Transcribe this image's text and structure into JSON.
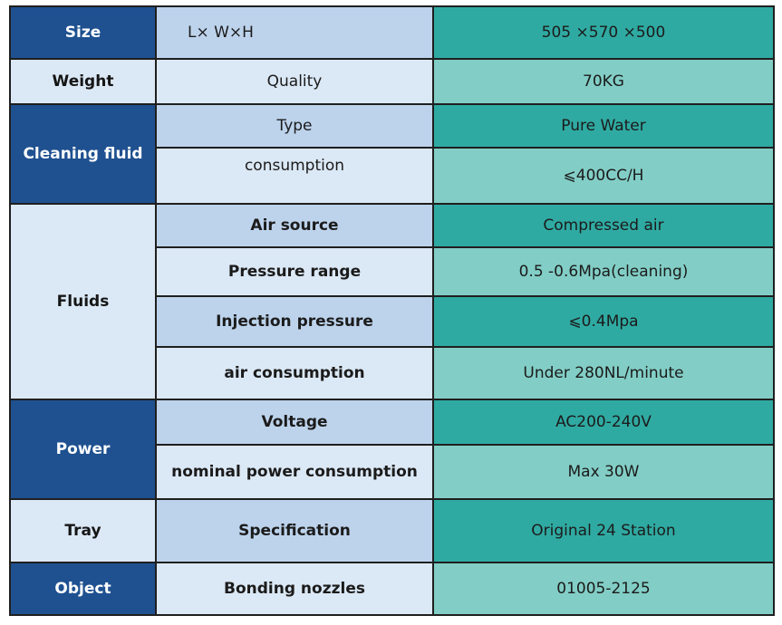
{
  "rows": {
    "size": {
      "category": "Size",
      "parameter": "L× W×H",
      "value": "505 ×570 ×500"
    },
    "weight": {
      "category": "Weight",
      "parameter": "Quality",
      "value": "70KG"
    },
    "cleaning_fluid": {
      "category": "Cleaning fluid",
      "type": {
        "parameter": "Type",
        "value": "Pure Water"
      },
      "consumption": {
        "parameter": "consumption",
        "value": "⩽400CC/H"
      }
    },
    "fluids": {
      "category": "Fluids",
      "air_source": {
        "parameter": "Air source",
        "value": "Compressed air"
      },
      "pressure_range": {
        "parameter": "Pressure range",
        "value": "0.5 -0.6Mpa(cleaning)"
      },
      "injection_pressure": {
        "parameter": "Injection pressure",
        "value": "⩽0.4Mpa"
      },
      "air_consumption": {
        "parameter": "air consumption",
        "value": "Under 280NL/minute"
      }
    },
    "power": {
      "category": "Power",
      "voltage": {
        "parameter": "Voltage",
        "value": "AC200-240V"
      },
      "nominal_power": {
        "parameter": "nominal power consumption",
        "value": "Max 30W"
      }
    },
    "tray": {
      "category": "Tray",
      "parameter": "Specification",
      "value": "Original 24 Station"
    },
    "object": {
      "category": "Object",
      "parameter": "Bonding nozzles",
      "value": "01005-2125"
    }
  },
  "colors": {
    "category_dark": "#1f5190",
    "category_light": "#dbe8f5",
    "parameter_mid": "#bdd3ec",
    "parameter_light": "#dbe8f5",
    "value_dark": "#2faaa2",
    "value_light": "#82cec6"
  }
}
